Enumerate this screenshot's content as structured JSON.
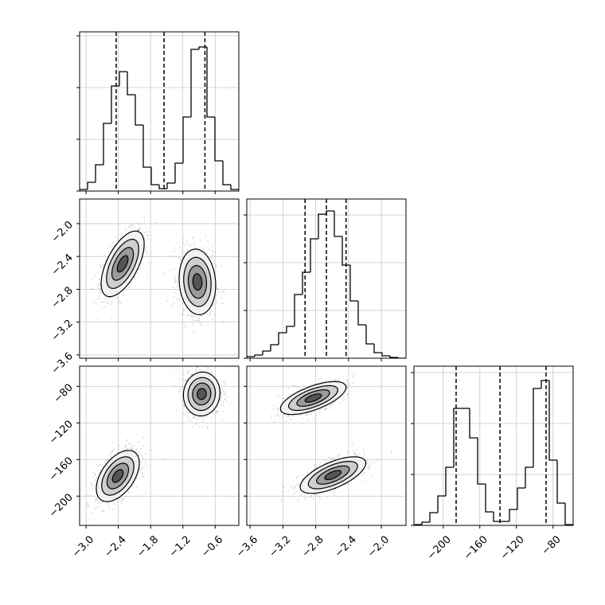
{
  "chart_data": {
    "type": "corner",
    "variables": [
      {
        "lim": [
          -3.12,
          -0.16
        ],
        "ticks": [
          {
            "value": -3.0,
            "label": "−3.0"
          },
          {
            "value": -2.4,
            "label": "−2.4"
          },
          {
            "value": -1.8,
            "label": "−1.8"
          },
          {
            "value": -1.2,
            "label": "−1.2"
          },
          {
            "value": -0.6,
            "label": "−0.6"
          }
        ]
      },
      {
        "lim": [
          -3.64,
          -1.7
        ],
        "ticks": [
          {
            "value": -3.6,
            "label": "−3.6"
          },
          {
            "value": -3.2,
            "label": "−3.2"
          },
          {
            "value": -2.8,
            "label": "−2.8"
          },
          {
            "value": -2.4,
            "label": "−2.4"
          },
          {
            "value": -2.0,
            "label": "−2.0"
          }
        ]
      },
      {
        "lim": [
          -232,
          -58
        ],
        "ticks": [
          {
            "value": -200,
            "label": "−200"
          },
          {
            "value": -160,
            "label": "−160"
          },
          {
            "value": -120,
            "label": "−120"
          },
          {
            "value": -80,
            "label": "−80"
          }
        ]
      }
    ],
    "hists": [
      {
        "var": 0,
        "ylim": [
          0,
          1
        ],
        "yticks": [
          0,
          0.325,
          0.65,
          0.975
        ],
        "bins": [
          -3.12,
          -2.972,
          -2.824,
          -2.676,
          -2.528,
          -2.38,
          -2.232,
          -2.084,
          -1.936,
          -1.788,
          -1.64,
          -1.492,
          -1.344,
          -1.196,
          -1.048,
          -0.9,
          -0.752,
          -0.604,
          -0.456,
          -0.308,
          -0.16
        ],
        "values": [
          0.01,
          0.055,
          0.165,
          0.425,
          0.66,
          0.75,
          0.605,
          0.415,
          0.15,
          0.04,
          0.015,
          0.05,
          0.175,
          0.465,
          0.89,
          0.905,
          0.465,
          0.19,
          0.04,
          0.01
        ],
        "quantiles": [
          -2.44,
          -1.55,
          -0.79
        ]
      },
      {
        "var": 1,
        "ylim": [
          0,
          1
        ],
        "yticks": [
          0,
          0.3,
          0.6,
          0.9
        ],
        "bins": [
          -3.64,
          -3.543,
          -3.446,
          -3.349,
          -3.252,
          -3.155,
          -3.058,
          -2.961,
          -2.864,
          -2.767,
          -2.67,
          -2.573,
          -2.476,
          -2.379,
          -2.282,
          -2.185,
          -2.088,
          -1.991,
          -1.894,
          -1.797,
          -1.7
        ],
        "values": [
          0.01,
          0.02,
          0.045,
          0.085,
          0.16,
          0.2,
          0.4,
          0.54,
          0.75,
          0.905,
          0.925,
          0.765,
          0.585,
          0.36,
          0.21,
          0.09,
          0.035,
          0.015,
          0.005,
          0
        ],
        "quantiles": [
          -2.93,
          -2.67,
          -2.43
        ]
      },
      {
        "var": 2,
        "ylim": [
          0,
          1
        ],
        "yticks": [
          0,
          0.32,
          0.64,
          0.96
        ],
        "bins": [
          -232,
          -223.3,
          -214.6,
          -205.9,
          -197.2,
          -188.5,
          -179.8,
          -171.1,
          -162.4,
          -153.7,
          -145,
          -136.3,
          -127.6,
          -118.9,
          -110.2,
          -101.5,
          -92.8,
          -84.1,
          -75.4,
          -66.7,
          -58
        ],
        "values": [
          0.005,
          0.02,
          0.08,
          0.185,
          0.365,
          0.735,
          0.735,
          0.55,
          0.26,
          0.085,
          0.025,
          0.025,
          0.1,
          0.235,
          0.365,
          0.86,
          0.91,
          0.41,
          0.14,
          0.005
        ],
        "quantiles": [
          -185.9,
          -138,
          -87.6
        ]
      }
    ],
    "panels": [
      {
        "x_var": 0,
        "y_var": 1,
        "modes": [
          {
            "x": -2.32,
            "y": -2.49,
            "sx": 0.2,
            "sy": 0.2,
            "corr": 0.6
          },
          {
            "x": -0.93,
            "y": -2.71,
            "sx": 0.17,
            "sy": 0.2,
            "corr": -0.1
          }
        ]
      },
      {
        "x_var": 0,
        "y_var": 2,
        "modes": [
          {
            "x": -0.85,
            "y": -88.4,
            "sx": 0.17,
            "sy": 12,
            "corr": 0.05
          },
          {
            "x": -2.41,
            "y": -178,
            "sx": 0.2,
            "sy": 14,
            "corr": 0.5
          }
        ]
      },
      {
        "x_var": 1,
        "y_var": 2,
        "modes": [
          {
            "x": -2.83,
            "y": -92.8,
            "sx": 0.2,
            "sy": 9,
            "corr": 0.65
          },
          {
            "x": -2.59,
            "y": -177,
            "sx": 0.2,
            "sy": 10,
            "corr": 0.65
          }
        ]
      }
    ]
  }
}
